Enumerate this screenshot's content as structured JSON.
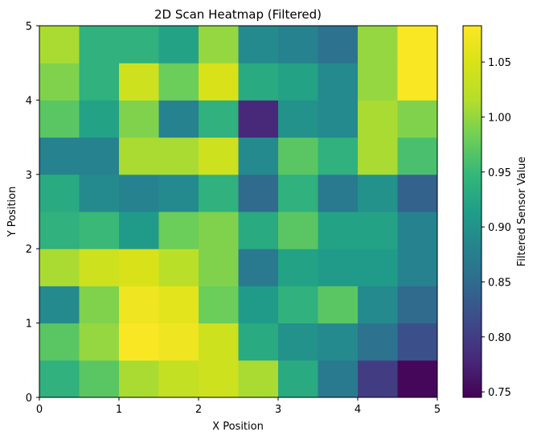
{
  "chart_data": {
    "type": "heatmap",
    "title": "2D Scan Heatmap (Filtered)",
    "xlabel": "X Position",
    "ylabel": "Y Position",
    "xlim": [
      0,
      5
    ],
    "ylim": [
      0,
      5
    ],
    "x_ticks": [
      "0",
      "1",
      "2",
      "3",
      "4",
      "5"
    ],
    "y_ticks": [
      "0",
      "1",
      "2",
      "3",
      "4",
      "5"
    ],
    "cell_size": 0.5,
    "rows_bottom_to_top": [
      [
        0.94,
        0.97,
        1.01,
        1.03,
        1.04,
        1.01,
        0.93,
        0.87,
        0.8,
        0.75
      ],
      [
        0.97,
        1.0,
        1.08,
        1.07,
        1.04,
        0.93,
        0.9,
        0.89,
        0.86,
        0.82
      ],
      [
        0.89,
        0.99,
        1.07,
        1.06,
        0.98,
        0.91,
        0.94,
        0.97,
        0.89,
        0.85
      ],
      [
        1.01,
        1.04,
        1.05,
        1.02,
        0.99,
        0.87,
        0.92,
        0.91,
        0.91,
        0.88
      ],
      [
        0.94,
        0.95,
        0.91,
        0.98,
        0.99,
        0.93,
        0.97,
        0.92,
        0.92,
        0.88
      ],
      [
        0.93,
        0.89,
        0.88,
        0.89,
        0.94,
        0.85,
        0.94,
        0.87,
        0.9,
        0.84
      ],
      [
        0.88,
        0.88,
        1.01,
        1.01,
        1.04,
        0.89,
        0.97,
        0.94,
        1.01,
        0.96
      ],
      [
        0.97,
        0.92,
        0.99,
        0.88,
        0.94,
        0.78,
        0.9,
        0.89,
        1.01,
        0.99
      ],
      [
        0.99,
        0.94,
        1.04,
        0.98,
        1.05,
        0.93,
        0.92,
        0.89,
        1.0,
        1.08
      ],
      [
        1.01,
        0.94,
        0.94,
        0.92,
        1.0,
        0.89,
        0.88,
        0.86,
        1.0,
        1.08
      ]
    ],
    "colorbar": {
      "label": "Filtered Sensor Value",
      "min": 0.745,
      "max": 1.083,
      "ticks": [
        "0.75",
        "0.80",
        "0.85",
        "0.90",
        "0.95",
        "1.00",
        "1.05"
      ],
      "colormap": "viridis"
    }
  }
}
